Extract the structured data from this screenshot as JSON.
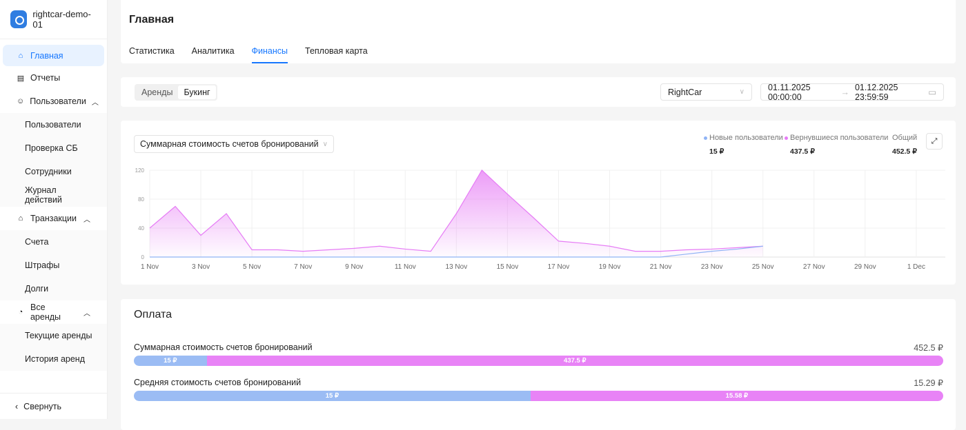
{
  "sidebar": {
    "brand": "rightcar-demo-01",
    "items": [
      {
        "label": "Главная",
        "icon": "home-icon"
      },
      {
        "label": "Отчеты",
        "icon": "reports-icon"
      },
      {
        "label": "Пользователи",
        "icon": "users-icon"
      },
      {
        "label": "Пользователи"
      },
      {
        "label": "Проверка СБ"
      },
      {
        "label": "Сотрудники"
      },
      {
        "label": "Журнал действий"
      },
      {
        "label": "Транзакции",
        "icon": "bank-icon"
      },
      {
        "label": "Счета"
      },
      {
        "label": "Штрафы"
      },
      {
        "label": "Долги"
      },
      {
        "label": "Все аренды",
        "icon": "dashboard-icon"
      },
      {
        "label": "Текущие аренды"
      },
      {
        "label": "История аренд"
      }
    ],
    "collapse": "Свернуть"
  },
  "header": {
    "title": "Главная",
    "tabs": [
      "Статистика",
      "Аналитика",
      "Финансы",
      "Тепловая карта"
    ],
    "active_tab": "Финансы"
  },
  "filter": {
    "segments": [
      "Аренды",
      "Букинг"
    ],
    "active_segment": "Букинг",
    "company": "RightCar",
    "date_from": "01.11.2025 00:00:00",
    "date_to": "01.12.2025 23:59:59"
  },
  "chart_card": {
    "metric": "Суммарная стоимость счетов бронирований",
    "legend": [
      {
        "name": "Новые пользователи",
        "value": "15 ₽",
        "color": "#8fb3f5"
      },
      {
        "name": "Вернувшиеся пользователи",
        "value": "437.5 ₽",
        "color": "#e67cf5"
      },
      {
        "name": "Общий",
        "value": "452.5 ₽"
      }
    ]
  },
  "chart_data": {
    "type": "area",
    "ylim": [
      0,
      120
    ],
    "yticks": [
      0,
      40,
      80,
      120
    ],
    "grid": true,
    "xticks": [
      "1 Nov",
      "3 Nov",
      "5 Nov",
      "7 Nov",
      "9 Nov",
      "11 Nov",
      "13 Nov",
      "15 Nov",
      "17 Nov",
      "19 Nov",
      "21 Nov",
      "23 Nov",
      "25 Nov",
      "27 Nov",
      "29 Nov",
      "1 Dec"
    ],
    "x": [
      "1 Nov",
      "2 Nov",
      "3 Nov",
      "4 Nov",
      "5 Nov",
      "6 Nov",
      "7 Nov",
      "8 Nov",
      "9 Nov",
      "10 Nov",
      "11 Nov",
      "12 Nov",
      "13 Nov",
      "14 Nov",
      "15 Nov",
      "16 Nov",
      "17 Nov",
      "18 Nov",
      "19 Nov",
      "20 Nov",
      "21 Nov",
      "22 Nov",
      "23 Nov",
      "24 Nov",
      "25 Nov"
    ],
    "series": [
      {
        "name": "Новые пользователи",
        "color": "#8fb3f5",
        "values": [
          0,
          0,
          0,
          0,
          0,
          0,
          0,
          0,
          0,
          0,
          0,
          0,
          0,
          0,
          0,
          0,
          0,
          0,
          0,
          0,
          0,
          4,
          8,
          11,
          15
        ]
      },
      {
        "name": "Вернувшиеся пользователи",
        "color": "#e67cf5",
        "values": [
          40,
          70,
          30,
          60,
          10,
          10,
          8,
          10,
          12,
          15,
          11,
          8,
          60,
          120,
          87,
          55,
          22,
          19,
          15,
          8,
          8,
          10,
          11,
          13,
          15
        ]
      }
    ]
  },
  "payment": {
    "title": "Оплата",
    "rows": [
      {
        "label": "Суммарная стоимость счетов бронирований",
        "total": "452.5 ₽",
        "new": "15 ₽",
        "returning": "437.5 ₽",
        "new_share": 9
      },
      {
        "label": "Средняя стоимость счетов бронирований",
        "total": "15.29 ₽",
        "new": "15 ₽",
        "returning": "15.58 ₽",
        "new_share": 49
      }
    ]
  }
}
